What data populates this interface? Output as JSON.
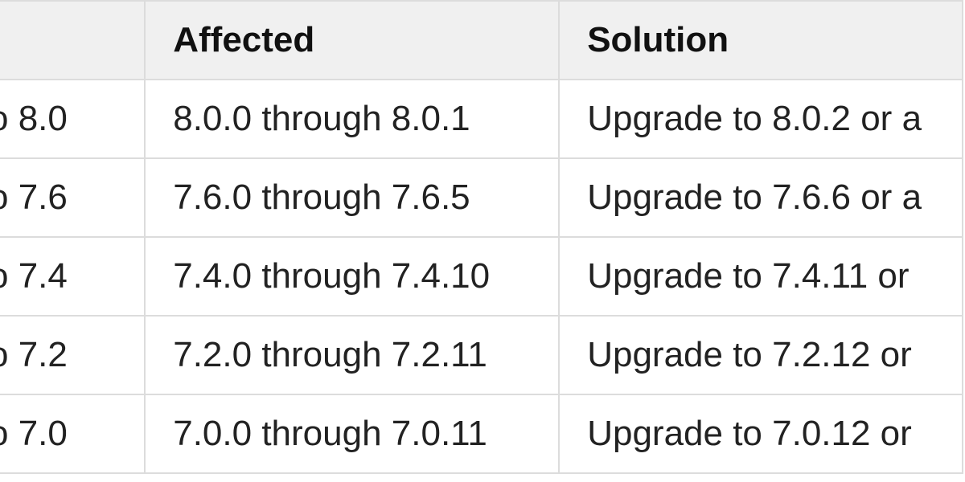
{
  "table": {
    "headers": [
      "",
      "Affected",
      "Solution"
    ],
    "rows": [
      {
        "version": "o 8.0",
        "affected": "8.0.0 through 8.0.1",
        "solution": "Upgrade to 8.0.2 or a"
      },
      {
        "version": "o 7.6",
        "affected": "7.6.0 through 7.6.5",
        "solution": "Upgrade to 7.6.6 or a"
      },
      {
        "version": "o 7.4",
        "affected": "7.4.0 through 7.4.10",
        "solution": "Upgrade to 7.4.11 or"
      },
      {
        "version": "o 7.2",
        "affected": "7.2.0 through 7.2.11",
        "solution": "Upgrade to 7.2.12 or"
      },
      {
        "version": "o 7.0",
        "affected": "7.0.0 through 7.0.11",
        "solution": "Upgrade to 7.0.12 or"
      }
    ]
  }
}
